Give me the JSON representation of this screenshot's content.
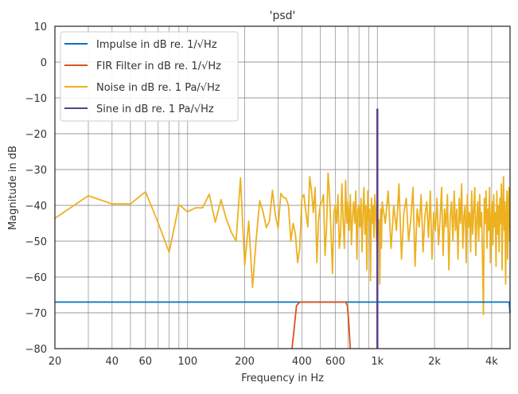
{
  "chart_data": {
    "type": "line",
    "title": "'psd'",
    "xlabel": "Frequency in Hz",
    "ylabel": "Magnitude in dB",
    "xscale": "log",
    "xlim": [
      20,
      5000
    ],
    "ylim": [
      -80,
      10
    ],
    "grid": true,
    "legend_position": "top-left",
    "x_ticks": [
      20,
      40,
      60,
      100,
      200,
      400,
      600,
      1000,
      2000,
      4000
    ],
    "x_tick_labels": [
      "20",
      "40",
      "60",
      "100",
      "200",
      "400",
      "600",
      "1k",
      "2k",
      "4k"
    ],
    "y_ticks": [
      10,
      0,
      -10,
      -20,
      -30,
      -40,
      -50,
      -60,
      -70,
      -80
    ],
    "y_tick_labels": [
      "10",
      "0",
      "−10",
      "−20",
      "−30",
      "−40",
      "−50",
      "−60",
      "−70",
      "−80"
    ],
    "series": [
      {
        "name": "Impulse in dB re. 1/√Hz",
        "color": "#0072BD",
        "points": [
          [
            20,
            -67
          ],
          [
            4950,
            -67
          ],
          [
            5000,
            -70
          ]
        ]
      },
      {
        "name": "FIR Filter in dB re. 1/√Hz",
        "color": "#D95319",
        "points": [
          [
            355,
            -80
          ],
          [
            365,
            -74
          ],
          [
            375,
            -68
          ],
          [
            390,
            -67
          ],
          [
            500,
            -67
          ],
          [
            680,
            -67
          ],
          [
            695,
            -68
          ],
          [
            705,
            -72
          ],
          [
            720,
            -80
          ]
        ]
      },
      {
        "name": "Noise in dB re. 1 Pa/√Hz",
        "color": "#EDB120",
        "points": [
          [
            20,
            -43.6
          ],
          [
            30,
            -37.3
          ],
          [
            40,
            -39.6
          ],
          [
            50,
            -39.6
          ],
          [
            60,
            -36.2
          ],
          [
            70,
            -44.9
          ],
          [
            80,
            -53.1
          ],
          [
            90,
            -39.8
          ],
          [
            100,
            -41.8
          ],
          [
            110,
            -40.7
          ],
          [
            120,
            -40.7
          ],
          [
            130,
            -36.9
          ],
          [
            140,
            -44.7
          ],
          [
            150,
            -38.4
          ],
          [
            160,
            -43.8
          ],
          [
            170,
            -47.5
          ],
          [
            180,
            -50
          ],
          [
            190,
            -32.3
          ],
          [
            200,
            -56.7
          ],
          [
            210,
            -44.4
          ],
          [
            220,
            -62.9
          ],
          [
            230,
            -49.3
          ],
          [
            240,
            -38.7
          ],
          [
            250,
            -41.9
          ],
          [
            260,
            -46.2
          ],
          [
            270,
            -44.4
          ],
          [
            280,
            -35.8
          ],
          [
            290,
            -42.7
          ],
          [
            300,
            -46.4
          ],
          [
            310,
            -36.7
          ],
          [
            320,
            -37.8
          ],
          [
            330,
            -38
          ],
          [
            340,
            -40
          ],
          [
            350,
            -50
          ],
          [
            360,
            -45
          ],
          [
            370,
            -48
          ],
          [
            380,
            -56
          ],
          [
            390,
            -52
          ],
          [
            400,
            -38
          ],
          [
            410,
            -37
          ],
          [
            420,
            -42
          ],
          [
            430,
            -46
          ],
          [
            440,
            -32
          ],
          [
            450,
            -36
          ],
          [
            460,
            -42
          ],
          [
            470,
            -35
          ],
          [
            480,
            -56
          ],
          [
            490,
            -44
          ],
          [
            500,
            -40
          ],
          [
            510,
            -39
          ],
          [
            520,
            -37
          ],
          [
            530,
            -54
          ],
          [
            540,
            -46
          ],
          [
            550,
            -31
          ],
          [
            560,
            -37
          ],
          [
            570,
            -48
          ],
          [
            580,
            -59
          ],
          [
            590,
            -42
          ],
          [
            600,
            -40
          ],
          [
            610,
            -45
          ],
          [
            620,
            -37
          ],
          [
            630,
            -52
          ],
          [
            640,
            -48
          ],
          [
            650,
            -34
          ],
          [
            660,
            -44
          ],
          [
            670,
            -52
          ],
          [
            680,
            -33
          ],
          [
            690,
            -45
          ],
          [
            700,
            -39
          ],
          [
            710,
            -47
          ],
          [
            720,
            -37
          ],
          [
            730,
            -51
          ],
          [
            740,
            -43
          ],
          [
            750,
            -39
          ],
          [
            760,
            -45
          ],
          [
            770,
            -36
          ],
          [
            780,
            -55
          ],
          [
            790,
            -41
          ],
          [
            800,
            -40
          ],
          [
            810,
            -46
          ],
          [
            820,
            -38
          ],
          [
            830,
            -53
          ],
          [
            840,
            -42
          ],
          [
            850,
            -35
          ],
          [
            860,
            -48
          ],
          [
            870,
            -40
          ],
          [
            880,
            -58
          ],
          [
            890,
            -36
          ],
          [
            900,
            -44
          ],
          [
            910,
            -41
          ],
          [
            920,
            -61
          ],
          [
            930,
            -38
          ],
          [
            940,
            -45
          ],
          [
            950,
            -40
          ],
          [
            960,
            -49
          ],
          [
            970,
            -37
          ],
          [
            980,
            -42
          ],
          [
            990,
            -50
          ],
          [
            1000,
            -33
          ],
          [
            1010,
            -48
          ],
          [
            1020,
            -44
          ],
          [
            1030,
            -62
          ],
          [
            1040,
            -41
          ],
          [
            1050,
            -52
          ],
          [
            1060,
            -39
          ],
          [
            1100,
            -45
          ],
          [
            1140,
            -36
          ],
          [
            1180,
            -52
          ],
          [
            1220,
            -40
          ],
          [
            1260,
            -47
          ],
          [
            1300,
            -34
          ],
          [
            1340,
            -55
          ],
          [
            1380,
            -42
          ],
          [
            1420,
            -38
          ],
          [
            1460,
            -50
          ],
          [
            1500,
            -44
          ],
          [
            1540,
            -35
          ],
          [
            1580,
            -57
          ],
          [
            1620,
            -41
          ],
          [
            1660,
            -46
          ],
          [
            1700,
            -37
          ],
          [
            1740,
            -53
          ],
          [
            1780,
            -43
          ],
          [
            1820,
            -39
          ],
          [
            1860,
            -49
          ],
          [
            1900,
            -36
          ],
          [
            1940,
            -55
          ],
          [
            1980,
            -42
          ],
          [
            2020,
            -47
          ],
          [
            2060,
            -38
          ],
          [
            2100,
            -51
          ],
          [
            2140,
            -44
          ],
          [
            2180,
            -35
          ],
          [
            2220,
            -54
          ],
          [
            2260,
            -41
          ],
          [
            2300,
            -46
          ],
          [
            2340,
            -37
          ],
          [
            2380,
            -58
          ],
          [
            2420,
            -43
          ],
          [
            2460,
            -39
          ],
          [
            2500,
            -50
          ],
          [
            2540,
            -36
          ],
          [
            2580,
            -47
          ],
          [
            2620,
            -41
          ],
          [
            2660,
            -55
          ],
          [
            2700,
            -38
          ],
          [
            2740,
            -45
          ],
          [
            2780,
            -34
          ],
          [
            2820,
            -52
          ],
          [
            2860,
            -43
          ],
          [
            2900,
            -40
          ],
          [
            2940,
            -56
          ],
          [
            2980,
            -37
          ],
          [
            3020,
            -46
          ],
          [
            3060,
            -42
          ],
          [
            3100,
            -53
          ],
          [
            3140,
            -36
          ],
          [
            3180,
            -48
          ],
          [
            3220,
            -41
          ],
          [
            3260,
            -35
          ],
          [
            3300,
            -54
          ],
          [
            3340,
            -44
          ],
          [
            3380,
            -39
          ],
          [
            3420,
            -50
          ],
          [
            3460,
            -37
          ],
          [
            3500,
            -46
          ],
          [
            3540,
            -42
          ],
          [
            3580,
            -55
          ],
          [
            3620,
            -70.5
          ],
          [
            3660,
            -38
          ],
          [
            3700,
            -45
          ],
          [
            3740,
            -36
          ],
          [
            3780,
            -52
          ],
          [
            3820,
            -41
          ],
          [
            3860,
            -47
          ],
          [
            3900,
            -35
          ],
          [
            3940,
            -56
          ],
          [
            3980,
            -43
          ],
          [
            4020,
            -39
          ],
          [
            4060,
            -51
          ],
          [
            4100,
            -37
          ],
          [
            4140,
            -46
          ],
          [
            4180,
            -42
          ],
          [
            4220,
            -57
          ],
          [
            4260,
            -36
          ],
          [
            4300,
            -48
          ],
          [
            4340,
            -40
          ],
          [
            4380,
            -53
          ],
          [
            4420,
            -38
          ],
          [
            4460,
            -45
          ],
          [
            4500,
            -34
          ],
          [
            4540,
            -58
          ],
          [
            4580,
            -41
          ],
          [
            4620,
            -32
          ],
          [
            4660,
            -47
          ],
          [
            4700,
            -39
          ],
          [
            4740,
            -62
          ],
          [
            4780,
            -44
          ],
          [
            4820,
            -36
          ],
          [
            4860,
            -55
          ],
          [
            4900,
            -40
          ],
          [
            4940,
            -35
          ],
          [
            4980,
            -50
          ]
        ]
      },
      {
        "name": "Sine in dB re. 1 Pa/√Hz",
        "color": "#5B3F8E",
        "points": [
          [
            1000,
            -80
          ],
          [
            1000,
            -13
          ]
        ]
      }
    ]
  }
}
